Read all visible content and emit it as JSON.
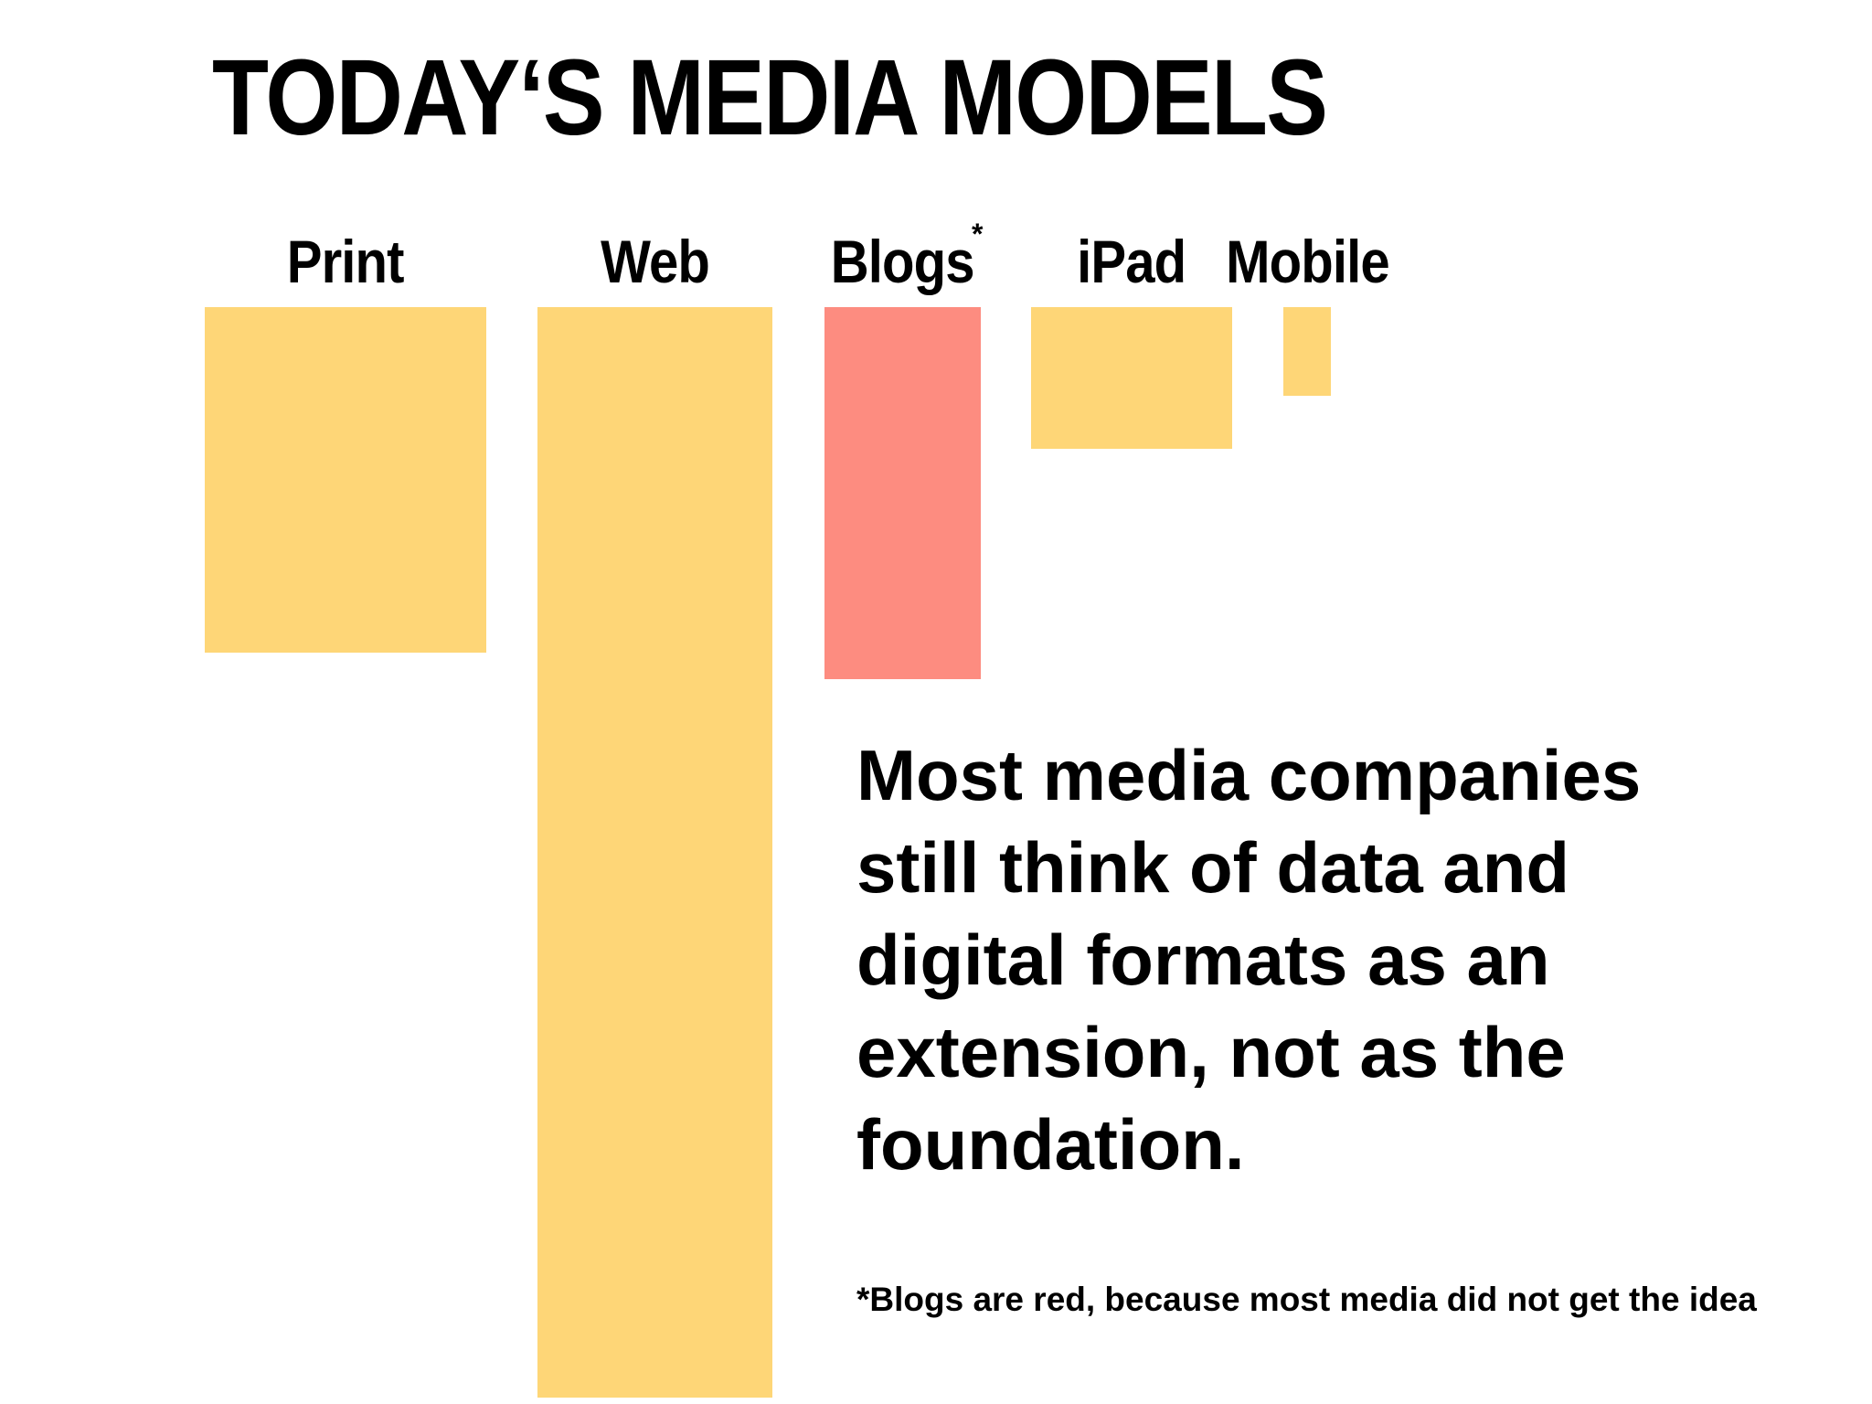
{
  "title": "TODAY‘S MEDIA MODELS",
  "chart_data": {
    "type": "bar",
    "categories": [
      "Print",
      "Web",
      "Blogs",
      "iPad",
      "Mobile"
    ],
    "values": [
      3.9,
      12.3,
      4.2,
      1.6,
      1.0
    ],
    "bar_colors": [
      "#fed677",
      "#fed677",
      "#fd8c80",
      "#fed677",
      "#fed677"
    ],
    "annotations": [
      "*"
    ]
  },
  "colors": {
    "default_bar": "#fed677",
    "highlight_bar": "#fd8c80",
    "text": "#000000",
    "background": "#ffffff"
  },
  "statement": "Most media companies still think of data and digital formats as an extension, not as the foundation.",
  "footnote": "*Blogs are red, because most media did not get the idea"
}
